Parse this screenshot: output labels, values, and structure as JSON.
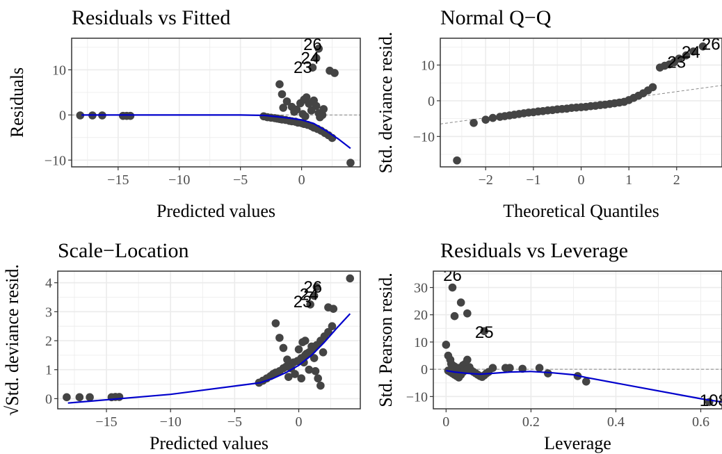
{
  "chart_data": [
    {
      "id": "p1",
      "type": "scatter",
      "title": "Residuals vs Fitted",
      "xlabel": "Predicted values",
      "ylabel": "Residuals",
      "xlim": [
        -18.8,
        4.8
      ],
      "ylim": [
        -11.5,
        17
      ],
      "xticks": [
        -15,
        -10,
        -5,
        0,
        5
      ],
      "yticks": [
        -10,
        0,
        10
      ],
      "grid": true,
      "refline": {
        "type": "h",
        "y": 0
      },
      "smooth": [
        [
          -18,
          0
        ],
        [
          -10,
          0
        ],
        [
          -5,
          0
        ],
        [
          -3,
          -0.1
        ],
        [
          -2,
          -0.4
        ],
        [
          -1,
          -0.7
        ],
        [
          0,
          -1.1
        ],
        [
          1,
          -1.9
        ],
        [
          2,
          -3.5
        ],
        [
          3,
          -5.3
        ],
        [
          4,
          -7.4
        ]
      ],
      "points": [
        [
          -18.1,
          -0.1
        ],
        [
          -17.1,
          -0.1
        ],
        [
          -16.3,
          -0.1
        ],
        [
          -14.6,
          -0.2
        ],
        [
          -14.3,
          -0.2
        ],
        [
          -14.0,
          -0.2
        ],
        [
          -3.1,
          -0.3
        ],
        [
          -2.8,
          -0.5
        ],
        [
          -2.5,
          -0.6
        ],
        [
          -2.2,
          -0.7
        ],
        [
          -2.0,
          -0.8
        ],
        [
          -1.8,
          -0.9
        ],
        [
          -1.6,
          -1.0
        ],
        [
          -1.3,
          -1.1
        ],
        [
          -1.0,
          -1.3
        ],
        [
          -0.8,
          -1.4
        ],
        [
          -0.5,
          -1.5
        ],
        [
          -0.3,
          -1.7
        ],
        [
          0.0,
          -1.8
        ],
        [
          0.2,
          -2.0
        ],
        [
          0.5,
          -2.2
        ],
        [
          0.8,
          -2.5
        ],
        [
          1.0,
          -2.8
        ],
        [
          1.3,
          -3.1
        ],
        [
          1.6,
          -3.5
        ],
        [
          1.9,
          -4.0
        ],
        [
          2.2,
          -4.5
        ],
        [
          2.5,
          -5.1
        ],
        [
          4.0,
          -10.6
        ],
        [
          -1.8,
          6.8
        ],
        [
          -1.6,
          4.6
        ],
        [
          -1.2,
          3.0
        ],
        [
          -0.8,
          1.8
        ],
        [
          -0.4,
          1.2
        ],
        [
          -0.1,
          2.6
        ],
        [
          0.2,
          3.4
        ],
        [
          0.4,
          3.9
        ],
        [
          0.6,
          2.5
        ],
        [
          0.8,
          1.0
        ],
        [
          1.0,
          3.2
        ],
        [
          1.2,
          2.0
        ],
        [
          1.4,
          0.4
        ],
        [
          1.7,
          0.0
        ],
        [
          2.3,
          9.8
        ],
        [
          2.7,
          9.3
        ],
        [
          -1.5,
          1.6
        ],
        [
          -0.6,
          0.7
        ],
        [
          0.1,
          0.2
        ],
        [
          0.3,
          -0.3
        ],
        [
          1.5,
          -0.5
        ],
        [
          1.8,
          1.3
        ],
        [
          0.9,
          10.5
        ],
        [
          1.2,
          12.6
        ],
        [
          1.4,
          14.7
        ]
      ],
      "labels": [
        {
          "text": "23",
          "x": 0.1,
          "y": 10.5
        },
        {
          "text": "24",
          "x": 0.7,
          "y": 12.6
        },
        {
          "text": "26",
          "x": 0.9,
          "y": 15.6
        }
      ]
    },
    {
      "id": "p2",
      "type": "scatter",
      "title": "Normal Q−Q",
      "xlabel": "Theoretical Quantiles",
      "ylabel": "Std. deviance resid.",
      "xlim": [
        -2.95,
        2.95
      ],
      "ylim": [
        -18.5,
        17.5
      ],
      "xticks": [
        -2,
        -1,
        0,
        1,
        2
      ],
      "yticks": [
        -10,
        0,
        10
      ],
      "grid": true,
      "refline": {
        "type": "ab",
        "x1": -2.95,
        "y1": -6.5,
        "x2": 2.95,
        "y2": 4.3
      },
      "points": [
        [
          -2.6,
          -16.7
        ],
        [
          -2.25,
          -6.2
        ],
        [
          -2.0,
          -5.3
        ],
        [
          -1.85,
          -4.8
        ],
        [
          -1.7,
          -4.5
        ],
        [
          -1.6,
          -4.3
        ],
        [
          -1.5,
          -4.1
        ],
        [
          -1.4,
          -3.9
        ],
        [
          -1.3,
          -3.7
        ],
        [
          -1.2,
          -3.5
        ],
        [
          -1.1,
          -3.3
        ],
        [
          -1.0,
          -3.2
        ],
        [
          -0.9,
          -3.0
        ],
        [
          -0.8,
          -2.9
        ],
        [
          -0.7,
          -2.7
        ],
        [
          -0.6,
          -2.6
        ],
        [
          -0.5,
          -2.4
        ],
        [
          -0.4,
          -2.3
        ],
        [
          -0.3,
          -2.2
        ],
        [
          -0.2,
          -2.0
        ],
        [
          -0.1,
          -1.9
        ],
        [
          0.0,
          -1.8
        ],
        [
          0.1,
          -1.7
        ],
        [
          0.2,
          -1.5
        ],
        [
          0.3,
          -1.4
        ],
        [
          0.4,
          -1.2
        ],
        [
          0.5,
          -1.1
        ],
        [
          0.6,
          -0.9
        ],
        [
          0.7,
          -0.7
        ],
        [
          0.8,
          -0.5
        ],
        [
          0.9,
          -0.3
        ],
        [
          1.0,
          0.2
        ],
        [
          1.1,
          0.8
        ],
        [
          1.2,
          1.4
        ],
        [
          1.3,
          2.1
        ],
        [
          1.4,
          2.9
        ],
        [
          1.5,
          3.8
        ],
        [
          1.65,
          9.3
        ],
        [
          1.75,
          9.8
        ],
        [
          1.85,
          10.2
        ],
        [
          1.95,
          10.8
        ],
        [
          2.05,
          11.8
        ],
        [
          2.2,
          12.7
        ],
        [
          2.35,
          13.8
        ],
        [
          2.55,
          15.2
        ]
      ],
      "labels": [
        {
          "text": "23",
          "x": 2.0,
          "y": 10.8
        },
        {
          "text": "24",
          "x": 2.3,
          "y": 13.6
        },
        {
          "text": "26",
          "x": 2.72,
          "y": 15.8
        }
      ]
    },
    {
      "id": "p3",
      "type": "scatter",
      "title": "Scale−Location",
      "xlabel": "Predicted values",
      "ylabel": "√Std. deviance resid.",
      "xlim": [
        -18.8,
        4.8
      ],
      "ylim": [
        -0.35,
        4.4
      ],
      "xticks": [
        -15,
        -10,
        -5,
        0,
        5
      ],
      "yticks": [
        0,
        1,
        2,
        3,
        4
      ],
      "grid": true,
      "smooth": [
        [
          -18,
          -0.15
        ],
        [
          -10,
          0.15
        ],
        [
          -3,
          0.55
        ],
        [
          -2,
          0.7
        ],
        [
          -1,
          0.9
        ],
        [
          0,
          1.15
        ],
        [
          1,
          1.5
        ],
        [
          2,
          1.95
        ],
        [
          3,
          2.45
        ],
        [
          4,
          2.93
        ]
      ],
      "points": [
        [
          -18.1,
          0.05
        ],
        [
          -17.1,
          0.05
        ],
        [
          -16.3,
          0.05
        ],
        [
          -14.6,
          0.05
        ],
        [
          -14.3,
          0.06
        ],
        [
          -14.0,
          0.06
        ],
        [
          -3.1,
          0.55
        ],
        [
          -2.8,
          0.62
        ],
        [
          -2.5,
          0.7
        ],
        [
          -2.2,
          0.78
        ],
        [
          -2.0,
          0.85
        ],
        [
          -1.8,
          0.9
        ],
        [
          -1.5,
          0.95
        ],
        [
          -1.2,
          1.05
        ],
        [
          -1.0,
          1.1
        ],
        [
          -0.7,
          1.15
        ],
        [
          -0.4,
          1.25
        ],
        [
          -0.1,
          1.3
        ],
        [
          0.2,
          1.4
        ],
        [
          0.5,
          1.5
        ],
        [
          0.8,
          1.6
        ],
        [
          1.1,
          1.7
        ],
        [
          1.4,
          1.85
        ],
        [
          1.7,
          2.0
        ],
        [
          2.0,
          2.15
        ],
        [
          2.3,
          2.3
        ],
        [
          2.6,
          2.5
        ],
        [
          4.0,
          4.15
        ],
        [
          -1.8,
          2.6
        ],
        [
          -1.5,
          2.1
        ],
        [
          -1.2,
          1.75
        ],
        [
          -0.9,
          1.35
        ],
        [
          -0.6,
          1.05
        ],
        [
          -0.3,
          0.85
        ],
        [
          0.0,
          1.7
        ],
        [
          0.3,
          1.95
        ],
        [
          0.5,
          2.0
        ],
        [
          0.6,
          1.55
        ],
        [
          0.8,
          1.0
        ],
        [
          1.0,
          1.8
        ],
        [
          1.2,
          1.4
        ],
        [
          1.5,
          0.7
        ],
        [
          1.7,
          0.45
        ],
        [
          2.3,
          3.15
        ],
        [
          2.7,
          3.1
        ],
        [
          -0.8,
          0.75
        ],
        [
          0.2,
          0.7
        ],
        [
          0.4,
          1.25
        ],
        [
          1.3,
          0.95
        ],
        [
          1.9,
          1.6
        ],
        [
          0.9,
          3.25
        ],
        [
          1.2,
          3.55
        ],
        [
          1.4,
          3.85
        ]
      ],
      "labels": [
        {
          "text": "23",
          "x": 0.3,
          "y": 3.35
        },
        {
          "text": "24",
          "x": 0.8,
          "y": 3.6
        },
        {
          "text": "26",
          "x": 1.1,
          "y": 3.85
        }
      ]
    },
    {
      "id": "p4",
      "type": "scatter",
      "title": "Residuals vs Leverage",
      "xlabel": "Leverage",
      "ylabel": "Std. Pearson resid.",
      "xlim": [
        -0.03,
        0.65
      ],
      "ylim": [
        -14.5,
        36
      ],
      "xticks": [
        0.0,
        0.2,
        0.4,
        0.6
      ],
      "yticks": [
        -10,
        0,
        10,
        20,
        30
      ],
      "grid": true,
      "refline": {
        "type": "h",
        "y": 0
      },
      "smooth": [
        [
          0.0,
          -0.5
        ],
        [
          0.02,
          -1.0
        ],
        [
          0.05,
          -1.5
        ],
        [
          0.08,
          -1.8
        ],
        [
          0.1,
          -1.6
        ],
        [
          0.15,
          -1.0
        ],
        [
          0.2,
          -0.8
        ],
        [
          0.25,
          -1.3
        ],
        [
          0.3,
          -2.0
        ],
        [
          0.33,
          -3.0
        ],
        [
          0.45,
          -6.5
        ],
        [
          0.6,
          -10.8
        ],
        [
          0.65,
          -12.0
        ]
      ],
      "points": [
        [
          0.0,
          9.0
        ],
        [
          0.005,
          5.0
        ],
        [
          0.01,
          3.5
        ],
        [
          0.012,
          2.0
        ],
        [
          0.015,
          1.5
        ],
        [
          0.02,
          1.0
        ],
        [
          0.025,
          0.5
        ],
        [
          0.03,
          0.5
        ],
        [
          0.035,
          -0.5
        ],
        [
          0.04,
          1.5
        ],
        [
          0.045,
          2.0
        ],
        [
          0.05,
          3.5
        ],
        [
          0.055,
          0.8
        ],
        [
          0.06,
          -0.5
        ],
        [
          0.065,
          -1.0
        ],
        [
          0.07,
          -1.5
        ],
        [
          0.075,
          -2.0
        ],
        [
          0.08,
          -2.5
        ],
        [
          0.085,
          -2.8
        ],
        [
          0.09,
          -2.2
        ],
        [
          0.095,
          -1.5
        ],
        [
          0.1,
          -1.0
        ],
        [
          0.11,
          0.5
        ],
        [
          0.005,
          -0.5
        ],
        [
          0.01,
          -1.0
        ],
        [
          0.015,
          -1.5
        ],
        [
          0.02,
          -2.0
        ],
        [
          0.025,
          -2.5
        ],
        [
          0.03,
          -3.0
        ],
        [
          0.035,
          -2.0
        ],
        [
          0.04,
          -1.0
        ],
        [
          0.05,
          0.0
        ],
        [
          0.015,
          30.0
        ],
        [
          0.02,
          19.5
        ],
        [
          0.035,
          24.5
        ],
        [
          0.05,
          20.5
        ],
        [
          0.09,
          14.0
        ],
        [
          0.14,
          0.5
        ],
        [
          0.15,
          0.5
        ],
        [
          0.18,
          0.2
        ],
        [
          0.22,
          0.5
        ],
        [
          0.24,
          -1.5
        ],
        [
          0.31,
          -2.5
        ],
        [
          0.33,
          -4.5
        ],
        [
          0.62,
          -12.0
        ]
      ],
      "labels": [
        {
          "text": "26",
          "x": 0.015,
          "y": 34.5
        },
        {
          "text": "25",
          "x": 0.09,
          "y": 13.5
        },
        {
          "text": "108",
          "x": 0.63,
          "y": -11.5
        }
      ]
    }
  ]
}
